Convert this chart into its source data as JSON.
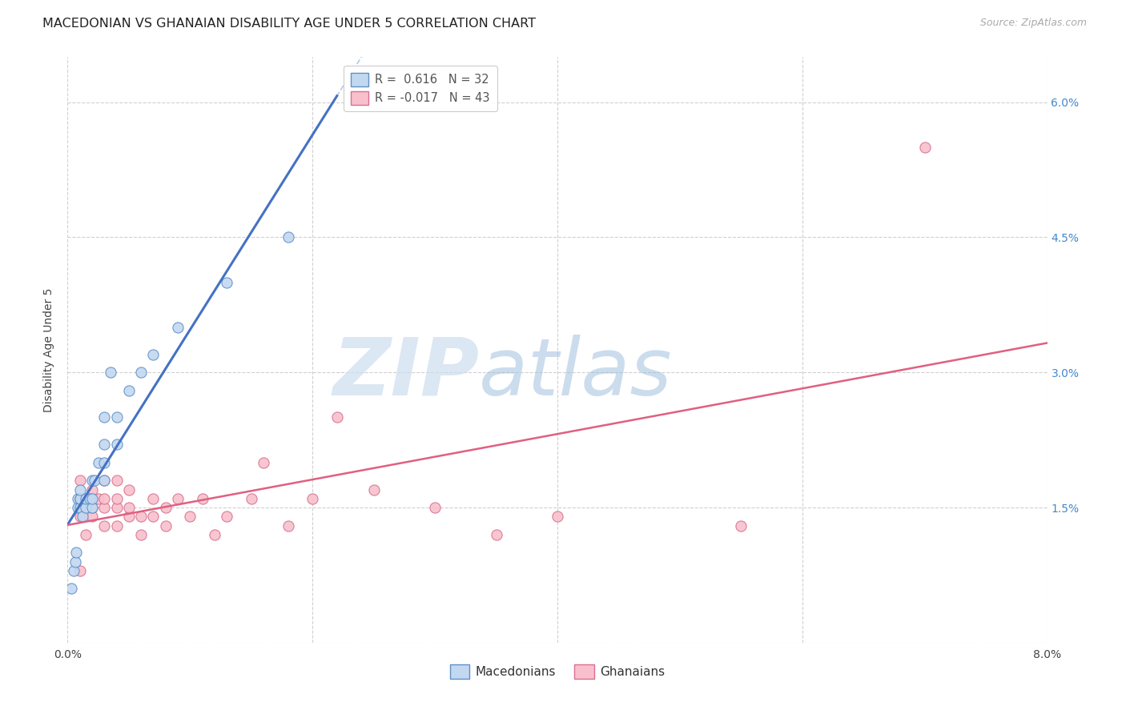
{
  "title": "MACEDONIAN VS GHANAIAN DISABILITY AGE UNDER 5 CORRELATION CHART",
  "source": "Source: ZipAtlas.com",
  "ylabel": "Disability Age Under 5",
  "xmin": 0.0,
  "xmax": 0.08,
  "ymin": 0.0,
  "ymax": 0.065,
  "yticks": [
    0.0,
    0.015,
    0.03,
    0.045,
    0.06
  ],
  "ytick_labels": [
    "",
    "1.5%",
    "3.0%",
    "4.5%",
    "6.0%"
  ],
  "xticks": [
    0.0,
    0.02,
    0.04,
    0.06,
    0.08
  ],
  "xtick_labels": [
    "0.0%",
    "",
    "",
    "",
    "8.0%"
  ],
  "legend_r1_text": "R =  0.616   N = 32",
  "legend_r2_text": "R = -0.017   N = 43",
  "blue_fill": "#c2d8f0",
  "blue_edge": "#6090c8",
  "pink_fill": "#f8c0cc",
  "pink_edge": "#d87090",
  "blue_line": "#4472c4",
  "pink_line": "#e06080",
  "dash_line": "#b8cce0",
  "watermark_zip": "ZIP",
  "watermark_atlas": "atlas",
  "macedonians_x": [
    0.0003,
    0.0005,
    0.0006,
    0.0007,
    0.0008,
    0.0008,
    0.001,
    0.001,
    0.001,
    0.001,
    0.0012,
    0.0015,
    0.0015,
    0.0018,
    0.002,
    0.002,
    0.002,
    0.0022,
    0.0025,
    0.003,
    0.003,
    0.003,
    0.003,
    0.0035,
    0.004,
    0.004,
    0.005,
    0.006,
    0.007,
    0.009,
    0.013,
    0.018
  ],
  "macedonians_y": [
    0.006,
    0.008,
    0.009,
    0.01,
    0.015,
    0.016,
    0.015,
    0.016,
    0.016,
    0.017,
    0.014,
    0.015,
    0.016,
    0.016,
    0.015,
    0.016,
    0.018,
    0.018,
    0.02,
    0.018,
    0.02,
    0.022,
    0.025,
    0.03,
    0.022,
    0.025,
    0.028,
    0.03,
    0.032,
    0.035,
    0.04,
    0.045
  ],
  "ghanaians_x": [
    0.001,
    0.001,
    0.001,
    0.001,
    0.0015,
    0.002,
    0.002,
    0.002,
    0.002,
    0.0025,
    0.003,
    0.003,
    0.003,
    0.003,
    0.004,
    0.004,
    0.004,
    0.004,
    0.005,
    0.005,
    0.005,
    0.006,
    0.006,
    0.007,
    0.007,
    0.008,
    0.008,
    0.009,
    0.01,
    0.011,
    0.012,
    0.013,
    0.015,
    0.016,
    0.018,
    0.02,
    0.022,
    0.025,
    0.03,
    0.035,
    0.04,
    0.055,
    0.07
  ],
  "ghanaians_y": [
    0.008,
    0.014,
    0.016,
    0.018,
    0.012,
    0.014,
    0.015,
    0.016,
    0.017,
    0.016,
    0.013,
    0.015,
    0.016,
    0.018,
    0.013,
    0.015,
    0.016,
    0.018,
    0.014,
    0.015,
    0.017,
    0.012,
    0.014,
    0.014,
    0.016,
    0.013,
    0.015,
    0.016,
    0.014,
    0.016,
    0.012,
    0.014,
    0.016,
    0.02,
    0.013,
    0.016,
    0.025,
    0.017,
    0.015,
    0.012,
    0.014,
    0.013,
    0.055
  ],
  "title_fontsize": 11.5,
  "axis_label_fontsize": 10,
  "tick_fontsize": 10,
  "marker_size": 90,
  "fig_width": 14.06,
  "fig_height": 8.92
}
